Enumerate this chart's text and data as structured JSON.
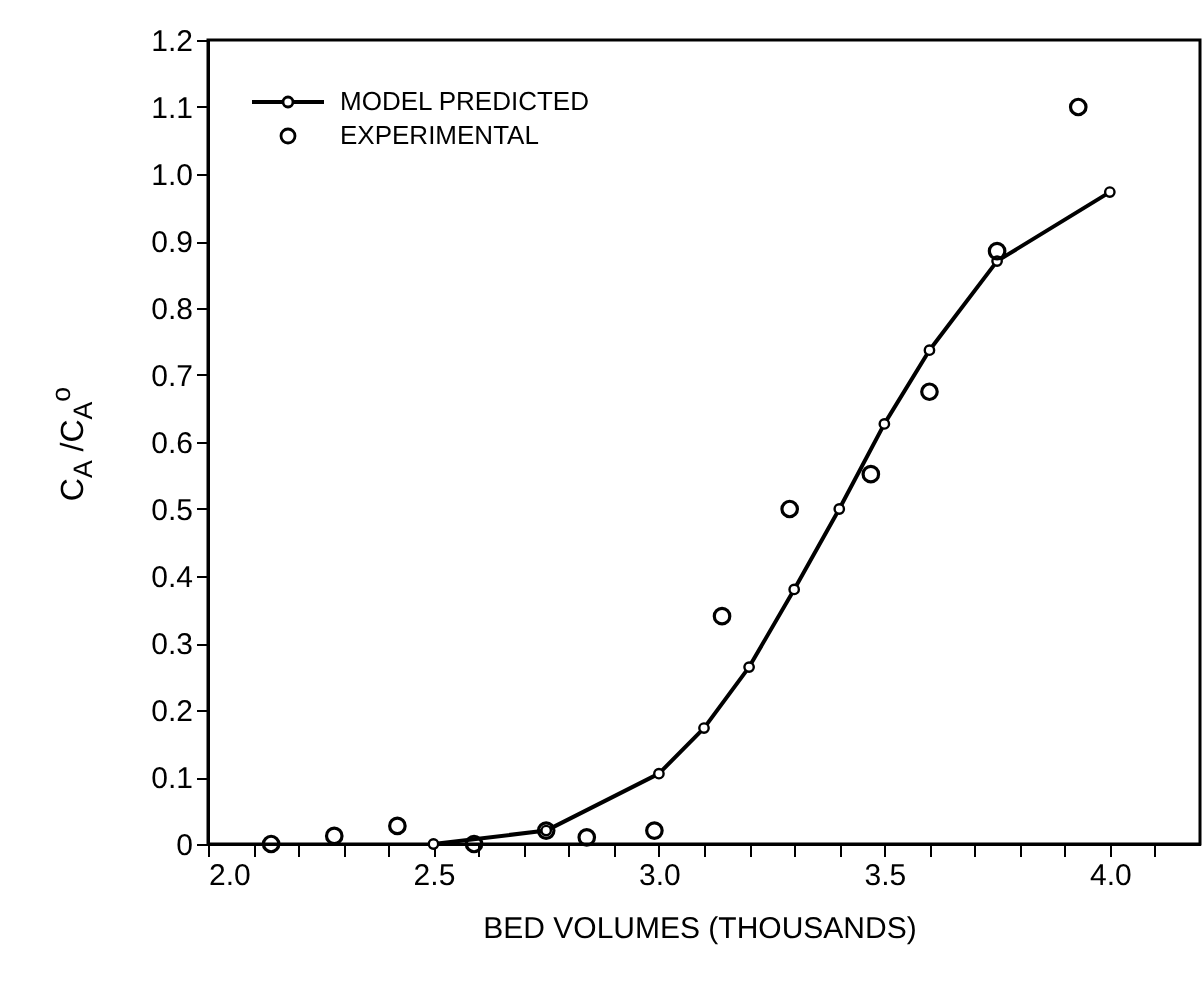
{
  "chart_data": {
    "type": "line",
    "xlabel": "BED VOLUMES (THOUSANDS)",
    "ylabel": "C$_{A}$ /C$_{A}$$^{o}$",
    "xlim": [
      2.0,
      4.2
    ],
    "ylim": [
      0,
      1.2
    ],
    "xticks": [
      {
        "value": 2.0,
        "label": "2.0"
      },
      {
        "value": 2.1,
        "label": null
      },
      {
        "value": 2.2,
        "label": null
      },
      {
        "value": 2.3,
        "label": null
      },
      {
        "value": 2.4,
        "label": null
      },
      {
        "value": 2.5,
        "label": "2.5"
      },
      {
        "value": 2.6,
        "label": null
      },
      {
        "value": 2.7,
        "label": null
      },
      {
        "value": 2.8,
        "label": null
      },
      {
        "value": 2.9,
        "label": null
      },
      {
        "value": 3.0,
        "label": "3.0"
      },
      {
        "value": 3.1,
        "label": null
      },
      {
        "value": 3.2,
        "label": null
      },
      {
        "value": 3.3,
        "label": null
      },
      {
        "value": 3.4,
        "label": null
      },
      {
        "value": 3.5,
        "label": "3.5"
      },
      {
        "value": 3.6,
        "label": null
      },
      {
        "value": 3.7,
        "label": null
      },
      {
        "value": 3.8,
        "label": null
      },
      {
        "value": 3.9,
        "label": null
      },
      {
        "value": 4.0,
        "label": "4.0"
      },
      {
        "value": 4.1,
        "label": null
      }
    ],
    "yticks": [
      0,
      0.1,
      0.2,
      0.3,
      0.4,
      0.5,
      0.6,
      0.7,
      0.8,
      0.9,
      {
        "value": 1.0,
        "label": "1.0"
      },
      1.1,
      1.2
    ],
    "legend": "top left",
    "grid": false,
    "series": [
      {
        "name": "MODEL PREDICTED",
        "color": "#000000",
        "marker": "circle",
        "line_style": "solid",
        "x": [
          2.5,
          2.75,
          3.0,
          3.1,
          3.2,
          3.3,
          3.4,
          3.5,
          3.6,
          3.75,
          4.0
        ],
        "values": [
          0,
          0.02,
          0.105,
          0.173,
          0.264,
          0.38,
          0.5,
          0.627,
          0.737,
          0.87,
          0.973
        ]
      },
      {
        "name": "EXPERIMENTAL",
        "type": "scatter",
        "color": "#000000",
        "marker": "circle",
        "x": [
          2.14,
          2.28,
          2.42,
          2.59,
          2.75,
          2.84,
          2.99,
          3.14,
          3.29,
          3.47,
          3.6,
          3.75,
          3.93
        ],
        "values": [
          0,
          0.012,
          0.027,
          0,
          0.02,
          0.01,
          0.02,
          0.34,
          0.5,
          0.552,
          0.675,
          0.885,
          1.1
        ]
      }
    ]
  }
}
